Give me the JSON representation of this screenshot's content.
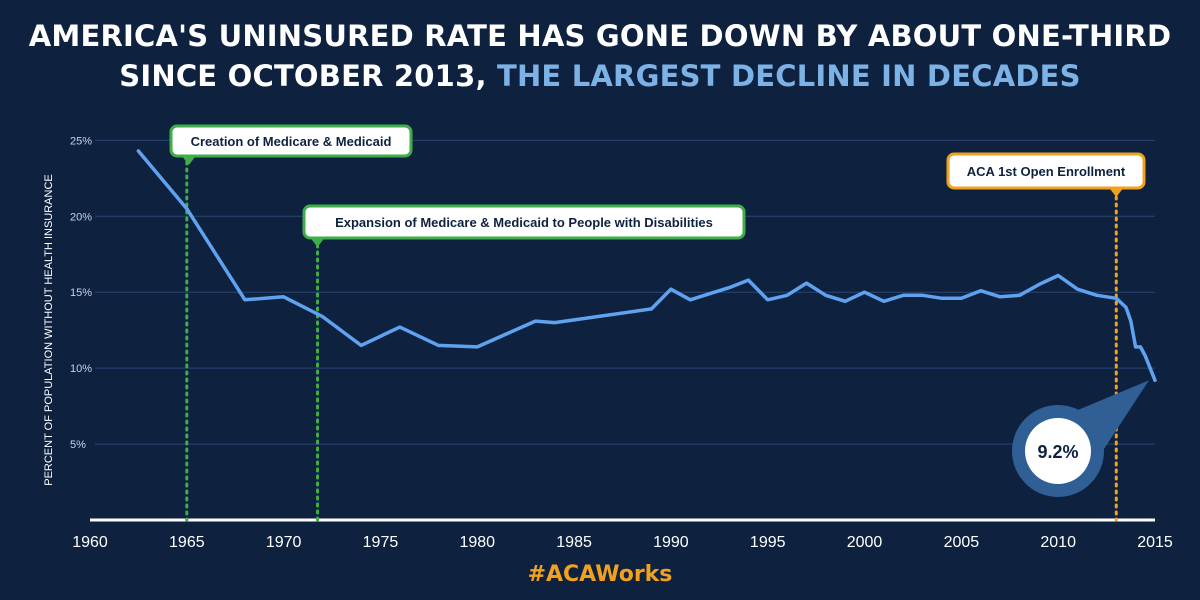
{
  "header": {
    "title_line1": "AMERICA'S UNINSURED RATE HAS GONE DOWN BY ABOUT ONE-THIRD",
    "title_line2_a": "SINCE OCTOBER 2013,",
    "title_line2_b": "THE LARGEST DECLINE IN DECADES"
  },
  "footer": {
    "hashtag": "#ACAWorks"
  },
  "colors": {
    "background": "#0e2240",
    "line": "#5fa3f0",
    "green": "#3fae49",
    "orange": "#f2a11f",
    "highlight": "#7cb2e6"
  },
  "chart_data": {
    "type": "line",
    "ylabel": "PERCENT OF POPULATION WITHOUT HEALTH INSURANCE",
    "xlim": [
      1960,
      2015
    ],
    "ylim": [
      0,
      27
    ],
    "x_ticks": [
      "1960",
      "1965",
      "1970",
      "1975",
      "1980",
      "1985",
      "1990",
      "1995",
      "2000",
      "2005",
      "2010",
      "2015"
    ],
    "y_ticks": [
      {
        "value": 5,
        "label": "5%"
      },
      {
        "value": 10,
        "label": "10%"
      },
      {
        "value": 15,
        "label": "15%"
      },
      {
        "value": 20,
        "label": "20%"
      },
      {
        "value": 25,
        "label": "25%"
      }
    ],
    "grid": true,
    "series": [
      {
        "x": [
          1962.5,
          1965,
          1968,
          1970,
          1972,
          1974,
          1976,
          1978,
          1980,
          1983,
          1984,
          1989,
          1990,
          1991,
          1992,
          1993,
          1994,
          1995,
          1996,
          1997,
          1998,
          1999,
          2000,
          2001,
          2002,
          2003,
          2004,
          2005,
          2006,
          2007,
          2008,
          2009,
          2010,
          2011,
          2012,
          2013,
          2013.5,
          2013.75,
          2014,
          2014.25,
          2014.5,
          2015
        ],
        "y": [
          24.3,
          20.5,
          14.5,
          14.7,
          13.4,
          11.5,
          12.7,
          11.5,
          11.4,
          13.1,
          13.0,
          13.9,
          15.2,
          14.5,
          14.9,
          15.3,
          15.8,
          14.5,
          14.8,
          15.6,
          14.8,
          14.4,
          15.0,
          14.4,
          14.8,
          14.8,
          14.6,
          14.6,
          15.1,
          14.7,
          14.8,
          15.5,
          16.1,
          15.2,
          14.8,
          14.6,
          14.0,
          13.1,
          11.4,
          11.4,
          10.8,
          9.2
        ]
      }
    ],
    "annotations": [
      {
        "label": "Creation of Medicare & Medicaid",
        "x": 1965,
        "color": "green"
      },
      {
        "label": "Expansion of Medicare & Medicaid to People with Disabilities",
        "x": 1971.75,
        "color": "green"
      },
      {
        "label": "ACA 1st Open Enrollment",
        "x": 2013,
        "color": "orange"
      }
    ],
    "final_value": {
      "label": "9.2%",
      "x": 2015,
      "y": 9.2
    }
  }
}
